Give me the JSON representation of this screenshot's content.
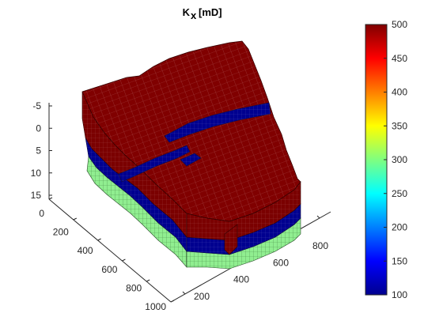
{
  "chart_data": {
    "type": "3d-grid-surface",
    "title": "K",
    "title_subscript": "x",
    "title_unit": "[mD]",
    "z_axis": {
      "ticks": [
        "-5",
        "0",
        "5",
        "10",
        "15"
      ],
      "values": [
        -5,
        0,
        5,
        10,
        15
      ]
    },
    "x_axis": {
      "ticks": [
        "0",
        "200",
        "400",
        "600",
        "800",
        "1000"
      ],
      "values": [
        0,
        200,
        400,
        600,
        800,
        1000
      ]
    },
    "y_axis": {
      "ticks": [
        "200",
        "400",
        "600",
        "800"
      ],
      "values": [
        200,
        400,
        600,
        800
      ]
    },
    "colorbar": {
      "colormap": "jet",
      "min": 100,
      "max": 500,
      "ticks": [
        "100",
        "150",
        "200",
        "250",
        "300",
        "350",
        "400",
        "450",
        "500"
      ],
      "values": [
        100,
        150,
        200,
        250,
        300,
        350,
        400,
        450,
        500
      ]
    },
    "layers": [
      {
        "value": 500,
        "color": "#800000"
      },
      {
        "value": 100,
        "color": "#00008f"
      },
      {
        "value": 300,
        "color": "#90ee90"
      }
    ],
    "grid": false
  }
}
